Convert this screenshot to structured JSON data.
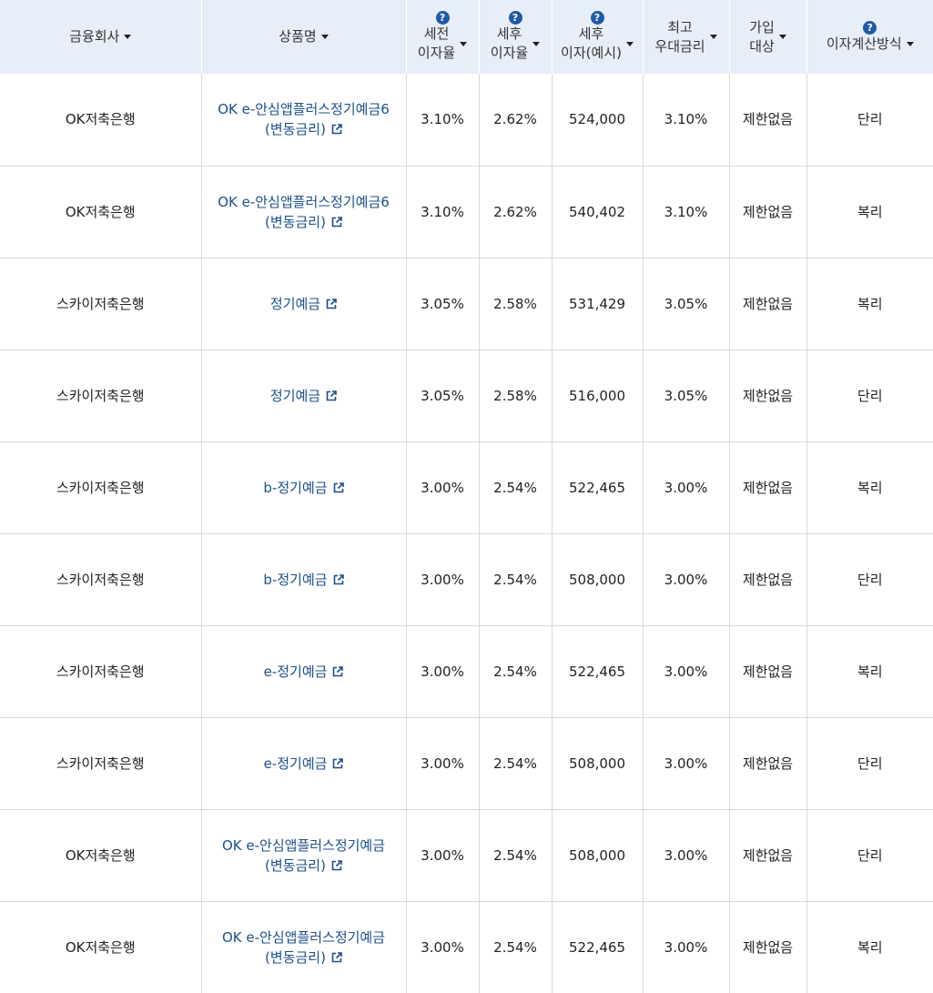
{
  "columns": [
    {
      "lines": [
        "금융회사"
      ],
      "help": false,
      "sort": true
    },
    {
      "lines": [
        "상품명"
      ],
      "help": false,
      "sort": true
    },
    {
      "lines": [
        "세전",
        "이자율"
      ],
      "help": true,
      "sort": true
    },
    {
      "lines": [
        "세후",
        "이자율"
      ],
      "help": true,
      "sort": true
    },
    {
      "lines": [
        "세후",
        "이자(예시)"
      ],
      "help": true,
      "sort": true
    },
    {
      "lines": [
        "최고",
        "우대금리"
      ],
      "help": false,
      "sort": true
    },
    {
      "lines": [
        "가입",
        "대상"
      ],
      "help": false,
      "sort": true
    },
    {
      "lines": [
        "이자계산방식"
      ],
      "help": true,
      "sort": true
    }
  ],
  "help_glyph": "?",
  "icons": {
    "help": "question-circle-icon",
    "sort": "caret-down-icon",
    "external": "external-link-icon"
  },
  "colors": {
    "header_bg": "#e8eef7",
    "link": "#1b4f8c",
    "help_icon": "#1f5aa6"
  },
  "rows": [
    {
      "company": "OK저축은행",
      "product": "OK e-안심앱플러스정기예금6 (변동금리)",
      "pre_tax_rate": "3.10%",
      "post_tax_rate": "2.62%",
      "post_tax_interest": "524,000",
      "max_rate": "3.10%",
      "eligibility": "제한없음",
      "interest_method": "단리"
    },
    {
      "company": "OK저축은행",
      "product": "OK e-안심앱플러스정기예금6 (변동금리)",
      "pre_tax_rate": "3.10%",
      "post_tax_rate": "2.62%",
      "post_tax_interest": "540,402",
      "max_rate": "3.10%",
      "eligibility": "제한없음",
      "interest_method": "복리"
    },
    {
      "company": "스카이저축은행",
      "product": "정기예금",
      "pre_tax_rate": "3.05%",
      "post_tax_rate": "2.58%",
      "post_tax_interest": "531,429",
      "max_rate": "3.05%",
      "eligibility": "제한없음",
      "interest_method": "복리"
    },
    {
      "company": "스카이저축은행",
      "product": "정기예금",
      "pre_tax_rate": "3.05%",
      "post_tax_rate": "2.58%",
      "post_tax_interest": "516,000",
      "max_rate": "3.05%",
      "eligibility": "제한없음",
      "interest_method": "단리"
    },
    {
      "company": "스카이저축은행",
      "product": "b-정기예금",
      "pre_tax_rate": "3.00%",
      "post_tax_rate": "2.54%",
      "post_tax_interest": "522,465",
      "max_rate": "3.00%",
      "eligibility": "제한없음",
      "interest_method": "복리"
    },
    {
      "company": "스카이저축은행",
      "product": "b-정기예금",
      "pre_tax_rate": "3.00%",
      "post_tax_rate": "2.54%",
      "post_tax_interest": "508,000",
      "max_rate": "3.00%",
      "eligibility": "제한없음",
      "interest_method": "단리"
    },
    {
      "company": "스카이저축은행",
      "product": "e-정기예금",
      "pre_tax_rate": "3.00%",
      "post_tax_rate": "2.54%",
      "post_tax_interest": "522,465",
      "max_rate": "3.00%",
      "eligibility": "제한없음",
      "interest_method": "복리"
    },
    {
      "company": "스카이저축은행",
      "product": "e-정기예금",
      "pre_tax_rate": "3.00%",
      "post_tax_rate": "2.54%",
      "post_tax_interest": "508,000",
      "max_rate": "3.00%",
      "eligibility": "제한없음",
      "interest_method": "단리"
    },
    {
      "company": "OK저축은행",
      "product": "OK e-안심앱플러스정기예금(변동금리)",
      "pre_tax_rate": "3.00%",
      "post_tax_rate": "2.54%",
      "post_tax_interest": "508,000",
      "max_rate": "3.00%",
      "eligibility": "제한없음",
      "interest_method": "단리"
    },
    {
      "company": "OK저축은행",
      "product": "OK e-안심앱플러스정기예금(변동금리)",
      "pre_tax_rate": "3.00%",
      "post_tax_rate": "2.54%",
      "post_tax_interest": "522,465",
      "max_rate": "3.00%",
      "eligibility": "제한없음",
      "interest_method": "복리"
    }
  ]
}
